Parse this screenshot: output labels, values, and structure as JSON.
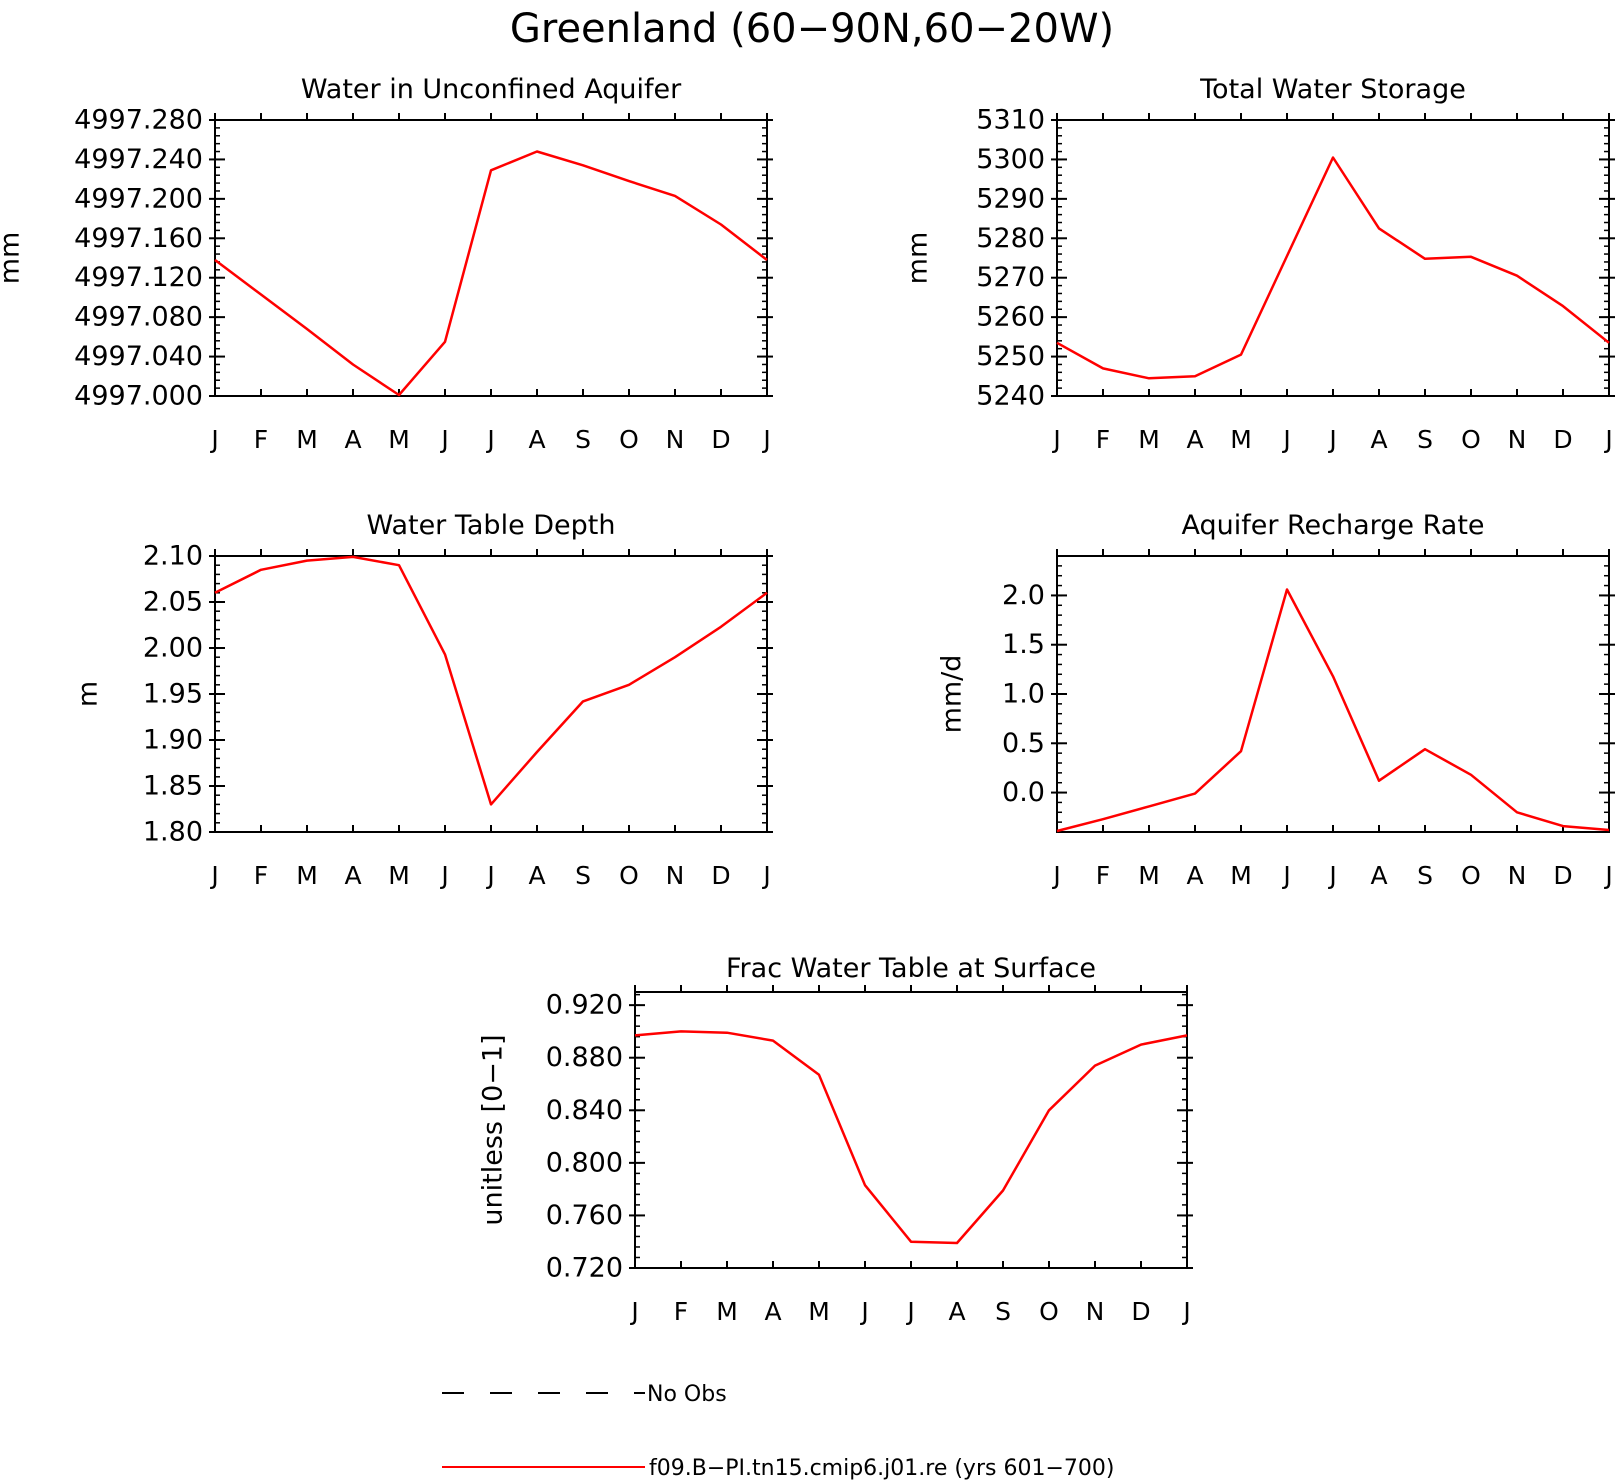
{
  "figure_title": "Greenland (60−90N,60−20W)",
  "colors": {
    "model_line": "#ff0000",
    "axis": "#000000",
    "obs_line": "#000000"
  },
  "legend": {
    "obs_label": "No Obs",
    "model_label": "f09.B−PI.tn15.cmip6.j01.re (yrs 601−700)"
  },
  "chart_data": [
    {
      "type": "line",
      "title": "Water in Unconfined Aquifer",
      "ylabel": "mm",
      "x": [
        "J",
        "F",
        "M",
        "A",
        "M",
        "J",
        "J",
        "A",
        "S",
        "O",
        "N",
        "D",
        "J"
      ],
      "ylim": [
        4997.0,
        4997.28
      ],
      "yticks": [
        4997.0,
        4997.04,
        4997.08,
        4997.12,
        4997.16,
        4997.2,
        4997.24,
        4997.28
      ],
      "ytick_labels": [
        "4997.000",
        "4997.040",
        "4997.080",
        "4997.120",
        "4997.160",
        "4997.200",
        "4997.240",
        "4997.280"
      ],
      "series": [
        {
          "values": [
            4997.138,
            4997.103,
            4997.068,
            4997.032,
            4997.001,
            4997.055,
            4997.229,
            4997.248,
            4997.234,
            4997.218,
            4997.203,
            4997.174,
            4997.138
          ]
        }
      ]
    },
    {
      "type": "line",
      "title": "Total Water Storage",
      "ylabel": "mm",
      "x": [
        "J",
        "F",
        "M",
        "A",
        "M",
        "J",
        "J",
        "A",
        "S",
        "O",
        "N",
        "D",
        "J"
      ],
      "ylim": [
        5240,
        5310
      ],
      "yticks": [
        5240,
        5250,
        5260,
        5270,
        5280,
        5290,
        5300,
        5310
      ],
      "ytick_labels": [
        "5240",
        "5250",
        "5260",
        "5270",
        "5280",
        "5290",
        "5300",
        "5310"
      ],
      "series": [
        {
          "values": [
            5253.5,
            5247.0,
            5244.5,
            5245.0,
            5250.5,
            5275.5,
            5300.5,
            5282.5,
            5274.8,
            5275.3,
            5270.5,
            5262.8,
            5253.5
          ]
        }
      ]
    },
    {
      "type": "line",
      "title": "Water Table Depth",
      "ylabel": "m",
      "x": [
        "J",
        "F",
        "M",
        "A",
        "M",
        "J",
        "J",
        "A",
        "S",
        "O",
        "N",
        "D",
        "J"
      ],
      "ylim": [
        1.8,
        2.1
      ],
      "yticks": [
        1.8,
        1.85,
        1.9,
        1.95,
        2.0,
        2.05,
        2.1
      ],
      "ytick_labels": [
        "1.80",
        "1.85",
        "1.90",
        "1.95",
        "2.00",
        "2.05",
        "2.10"
      ],
      "series": [
        {
          "values": [
            2.06,
            2.085,
            2.095,
            2.099,
            2.09,
            1.993,
            1.83,
            1.887,
            1.942,
            1.96,
            1.99,
            2.023,
            2.06
          ]
        }
      ]
    },
    {
      "type": "line",
      "title": "Aquifer Recharge Rate",
      "ylabel": "mm/d",
      "x": [
        "J",
        "F",
        "M",
        "A",
        "M",
        "J",
        "J",
        "A",
        "S",
        "O",
        "N",
        "D",
        "J"
      ],
      "ylim": [
        -0.4,
        2.4
      ],
      "yticks": [
        0.0,
        0.5,
        1.0,
        1.5,
        2.0
      ],
      "ytick_labels": [
        "0.0",
        "0.5",
        "1.0",
        "1.5",
        "2.0"
      ],
      "series": [
        {
          "values": [
            -0.39,
            -0.27,
            -0.14,
            -0.01,
            0.42,
            2.06,
            1.18,
            0.12,
            0.44,
            0.18,
            -0.2,
            -0.34,
            -0.38
          ]
        }
      ]
    },
    {
      "type": "line",
      "title": "Frac Water Table at Surface",
      "ylabel": "unitless [0−1]",
      "x": [
        "J",
        "F",
        "M",
        "A",
        "M",
        "J",
        "J",
        "A",
        "S",
        "O",
        "N",
        "D",
        "J"
      ],
      "ylim": [
        0.72,
        0.93
      ],
      "yticks": [
        0.72,
        0.76,
        0.8,
        0.84,
        0.88,
        0.92
      ],
      "ytick_labels": [
        "0.720",
        "0.760",
        "0.800",
        "0.840",
        "0.880",
        "0.920"
      ],
      "series": [
        {
          "values": [
            0.897,
            0.9,
            0.899,
            0.893,
            0.867,
            0.783,
            0.74,
            0.739,
            0.779,
            0.84,
            0.874,
            0.89,
            0.897
          ]
        }
      ]
    }
  ]
}
